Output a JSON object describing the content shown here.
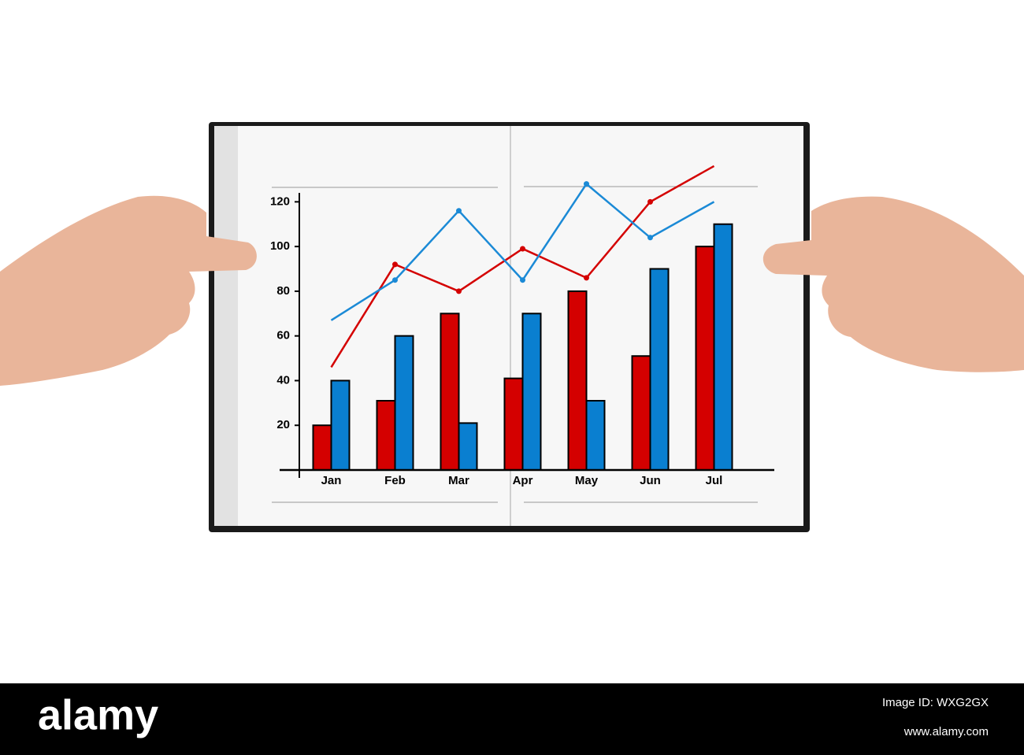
{
  "chart_data": {
    "type": "bar",
    "categories": [
      "Jan",
      "Feb",
      "Mar",
      "Apr",
      "May",
      "Jun",
      "Jul"
    ],
    "series": [
      {
        "type": "bar",
        "color": "#d40000",
        "values": [
          20,
          31,
          70,
          41,
          80,
          51,
          100
        ]
      },
      {
        "type": "bar",
        "color": "#0a7fd0",
        "values": [
          40,
          60,
          21,
          70,
          31,
          90,
          110
        ]
      },
      {
        "type": "line",
        "color": "#d40000",
        "values": [
          46,
          92,
          80,
          99,
          86,
          120,
          136
        ]
      },
      {
        "type": "line",
        "color": "#1b8ad6",
        "values": [
          67,
          85,
          116,
          85,
          128,
          104,
          120
        ]
      }
    ],
    "ylim": [
      0,
      124
    ],
    "yticks": [
      20,
      40,
      60,
      80,
      100,
      120
    ]
  },
  "footer": {
    "logo": "alamy",
    "image_id": "Image ID: WXG2GX",
    "url": "www.alamy.com"
  }
}
